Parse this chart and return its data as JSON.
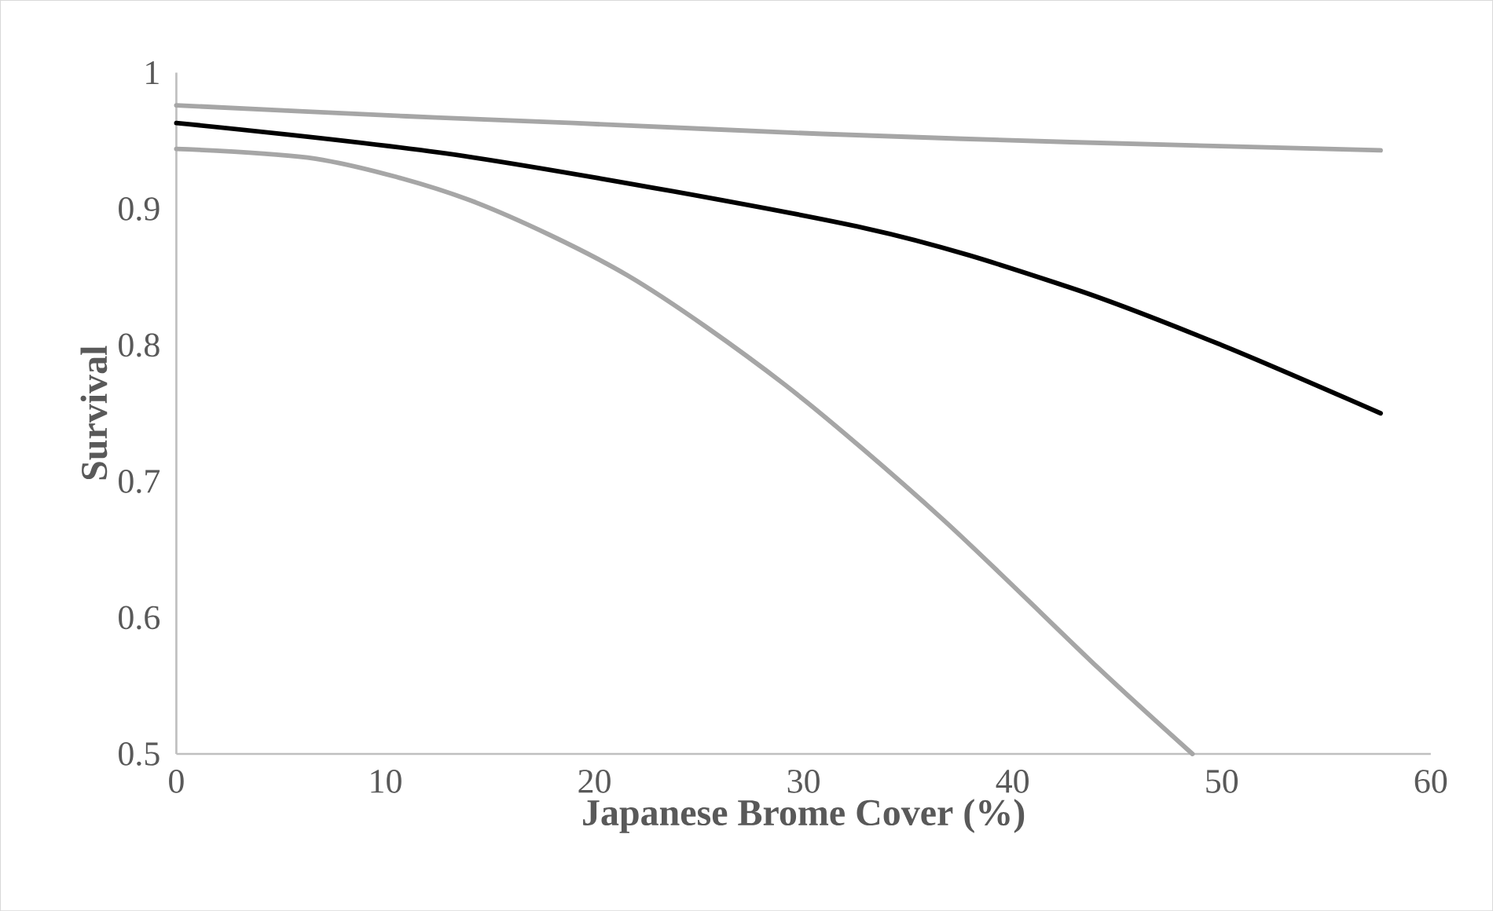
{
  "chart_data": {
    "type": "line",
    "xlabel": "Japanese Brome Cover (%)",
    "ylabel": "Survival",
    "xlim": [
      0,
      60
    ],
    "ylim": [
      0.5,
      1
    ],
    "xticks": [
      0,
      10,
      20,
      30,
      40,
      50,
      60
    ],
    "yticks": [
      0.5,
      0.6,
      0.7,
      0.8,
      0.9,
      1
    ],
    "grid": false,
    "series": [
      {
        "color": "#a6a6a6",
        "x": [
          0,
          11,
          19,
          30.9,
          42.8,
          57.6
        ],
        "values": [
          0.976,
          0.968,
          0.963,
          0.955,
          0.949,
          0.943
        ]
      },
      {
        "color": "#000000",
        "x": [
          0,
          14.1,
          32.9,
          42.8,
          50,
          57.6
        ],
        "values": [
          0.963,
          0.938,
          0.886,
          0.842,
          0.8,
          0.75
        ]
      },
      {
        "color": "#a6a6a6",
        "x": [
          0,
          7,
          14.1,
          21.6,
          29.1,
          36.6,
          44.1,
          48.6
        ],
        "values": [
          0.944,
          0.936,
          0.906,
          0.851,
          0.771,
          0.673,
          0.563,
          0.5
        ]
      }
    ]
  }
}
